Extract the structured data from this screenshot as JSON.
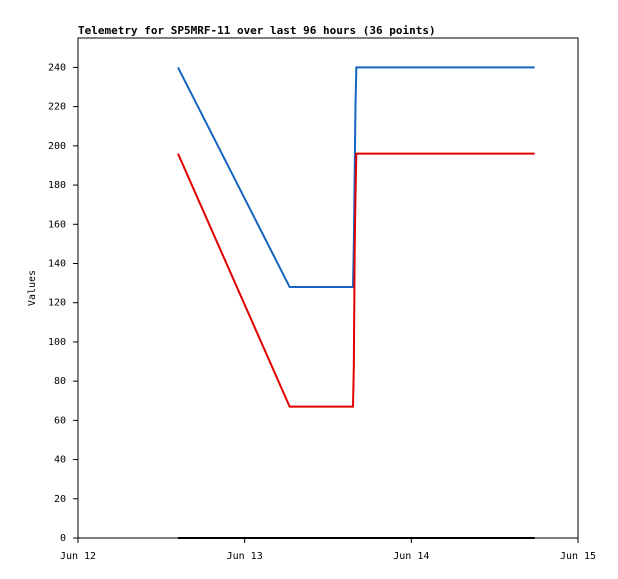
{
  "chart_data": {
    "type": "line",
    "title": "Telemetry for SP5MRF-11 over last 96 hours (36 points)",
    "y_label": "Values",
    "x": [
      0.6,
      1.27,
      1.65,
      1.655,
      1.66,
      1.665,
      1.67,
      2.74
    ],
    "series": [
      {
        "color": "#1565c0",
        "values": [
          240,
          128,
          128,
          150,
          185,
          221,
          240,
          240
        ]
      },
      {
        "color": "#e00000",
        "values": [
          196,
          67,
          67,
          88,
          146,
          175,
          196,
          196
        ]
      },
      {
        "color": "#000000",
        "values": [
          0,
          0,
          0,
          0,
          0,
          0,
          0,
          0
        ]
      }
    ],
    "xlim": [
      0,
      3
    ],
    "xticks": [
      {
        "value": 0,
        "label": "Jun 12"
      },
      {
        "value": 1,
        "label": "Jun 13"
      },
      {
        "value": 2,
        "label": "Jun 14"
      },
      {
        "value": 3,
        "label": "Jun 15"
      }
    ],
    "ylim": [
      0,
      255
    ],
    "yticks": [
      0,
      20,
      40,
      60,
      80,
      100,
      120,
      140,
      160,
      180,
      200,
      220,
      240
    ],
    "grid": false
  }
}
